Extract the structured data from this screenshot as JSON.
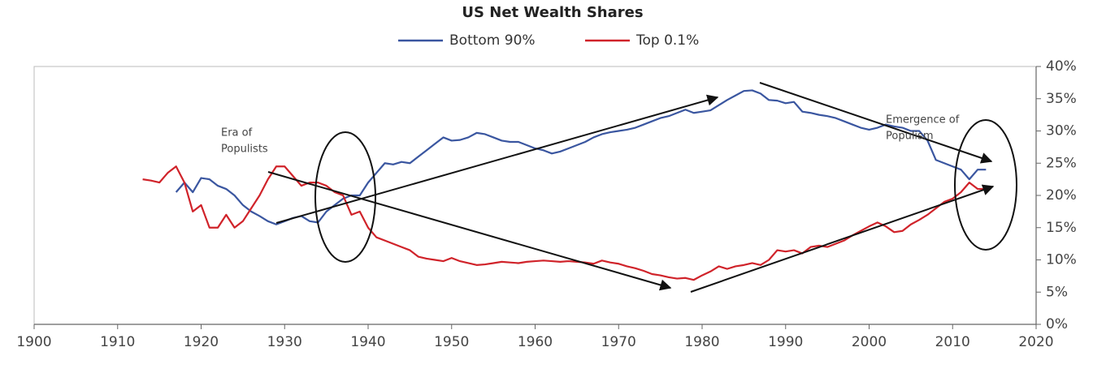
{
  "chart_data": {
    "type": "line",
    "title": "US Net Wealth Shares",
    "x": [
      1913,
      1914,
      1915,
      1916,
      1917,
      1918,
      1919,
      1920,
      1921,
      1922,
      1923,
      1924,
      1925,
      1926,
      1927,
      1928,
      1929,
      1930,
      1931,
      1932,
      1933,
      1934,
      1935,
      1936,
      1937,
      1938,
      1939,
      1940,
      1941,
      1942,
      1943,
      1944,
      1945,
      1946,
      1947,
      1948,
      1949,
      1950,
      1951,
      1952,
      1953,
      1954,
      1955,
      1956,
      1957,
      1958,
      1959,
      1960,
      1961,
      1962,
      1963,
      1964,
      1965,
      1966,
      1967,
      1968,
      1969,
      1970,
      1971,
      1972,
      1973,
      1974,
      1975,
      1976,
      1977,
      1978,
      1979,
      1980,
      1981,
      1982,
      1983,
      1984,
      1985,
      1986,
      1987,
      1988,
      1989,
      1990,
      1991,
      1992,
      1993,
      1994,
      1995,
      1996,
      1997,
      1998,
      1999,
      2000,
      2001,
      2002,
      2003,
      2004,
      2005,
      2006,
      2007,
      2008,
      2009,
      2010,
      2011,
      2012,
      2013,
      2014
    ],
    "series": [
      {
        "name": "Bottom 90%",
        "color": "#3a56a0",
        "values": [
          null,
          null,
          null,
          null,
          20.5,
          22,
          20.5,
          22.7,
          22.5,
          21.5,
          21,
          20,
          18.5,
          17.5,
          16.8,
          16,
          15.5,
          16,
          16.5,
          16.8,
          16,
          15.8,
          17.5,
          18.5,
          19.5,
          20,
          20,
          22,
          23.5,
          25,
          24.8,
          25.2,
          25,
          26,
          27,
          28,
          29,
          28.5,
          28.6,
          29,
          29.7,
          29.5,
          29,
          28.5,
          28.3,
          28.3,
          27.8,
          27.3,
          27,
          26.5,
          26.8,
          27.3,
          27.8,
          28.3,
          29,
          29.5,
          29.8,
          30,
          30.2,
          30.5,
          31,
          31.5,
          32,
          32.3,
          32.8,
          33.3,
          32.8,
          33,
          33.2,
          34,
          34.8,
          35.5,
          36.2,
          36.3,
          35.8,
          34.8,
          34.7,
          34.3,
          34.5,
          33,
          32.8,
          32.5,
          32.3,
          32,
          31.5,
          31,
          30.5,
          30.2,
          30.5,
          31,
          30.7,
          30.5,
          30,
          30,
          28.5,
          25.5,
          25,
          24.5,
          24,
          22.5,
          24,
          24
        ]
      },
      {
        "name": "Top 0.1%",
        "color": "#d0232a",
        "values": [
          22.5,
          22.3,
          22,
          23.5,
          24.5,
          22,
          17.5,
          18.5,
          15,
          15,
          17,
          15,
          16,
          18,
          20,
          22.5,
          24.5,
          24.5,
          23,
          21.5,
          22,
          22,
          21.5,
          20.5,
          20,
          17,
          17.5,
          15,
          13.5,
          13,
          12.5,
          12,
          11.5,
          10.5,
          10.2,
          10,
          9.8,
          10.3,
          9.8,
          9.5,
          9.2,
          9.3,
          9.5,
          9.7,
          9.6,
          9.5,
          9.7,
          9.8,
          9.9,
          9.8,
          9.7,
          9.8,
          9.7,
          9.6,
          9.4,
          9.9,
          9.6,
          9.4,
          9,
          8.7,
          8.3,
          7.8,
          7.6,
          7.3,
          7.1,
          7.2,
          6.9,
          7.6,
          8.2,
          9,
          8.6,
          9,
          9.2,
          9.5,
          9.2,
          10,
          11.5,
          11.3,
          11.5,
          11,
          12,
          12.2,
          12,
          12.5,
          13,
          13.8,
          14.5,
          15.2,
          15.8,
          15.2,
          14.3,
          14.5,
          15.5,
          16.2,
          17,
          18,
          19,
          19.5,
          20.5,
          22,
          21,
          21
        ]
      }
    ],
    "xlim": [
      1900,
      2020
    ],
    "xticks": [
      1900,
      1910,
      1920,
      1930,
      1940,
      1950,
      1960,
      1970,
      1980,
      1990,
      2000,
      2010,
      2020
    ],
    "ylim": [
      0,
      40
    ],
    "yticks": [
      {
        "value": 0,
        "label": "0%"
      },
      {
        "value": 5,
        "label": "5%"
      },
      {
        "value": 10,
        "label": "10%"
      },
      {
        "value": 15,
        "label": "15%"
      },
      {
        "value": 20,
        "label": "20%"
      },
      {
        "value": 25,
        "label": "25%"
      },
      {
        "value": 30,
        "label": "30%"
      },
      {
        "value": 35,
        "label": "35%"
      },
      {
        "value": 40,
        "label": "40%"
      }
    ],
    "legend": "top",
    "annotations": [
      [
        "Era of",
        "Populists"
      ],
      [
        "Emergence of",
        "Populism"
      ]
    ]
  }
}
